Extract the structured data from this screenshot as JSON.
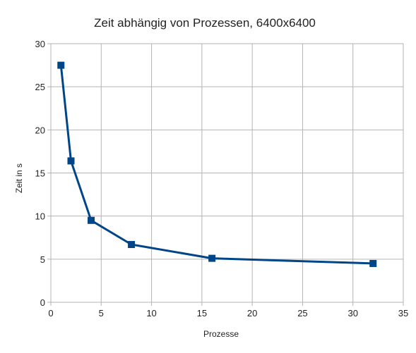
{
  "chart_data": {
    "type": "line",
    "title": "Zeit abhängig von Prozessen, 6400x6400",
    "xlabel": "Prozesse",
    "ylabel": "Zeit in s",
    "xlim": [
      0,
      35
    ],
    "ylim": [
      0,
      30
    ],
    "xticks": [
      0,
      5,
      10,
      15,
      20,
      25,
      30,
      35
    ],
    "yticks": [
      0,
      5,
      10,
      15,
      20,
      25,
      30
    ],
    "grid": true,
    "legend": "none",
    "series": [
      {
        "color": "#004586",
        "marker": "square",
        "points": [
          {
            "x": 1,
            "y": 27.5
          },
          {
            "x": 2,
            "y": 16.4
          },
          {
            "x": 4,
            "y": 9.5
          },
          {
            "x": 8,
            "y": 6.7
          },
          {
            "x": 16,
            "y": 5.1
          },
          {
            "x": 32,
            "y": 4.5
          }
        ]
      }
    ]
  }
}
